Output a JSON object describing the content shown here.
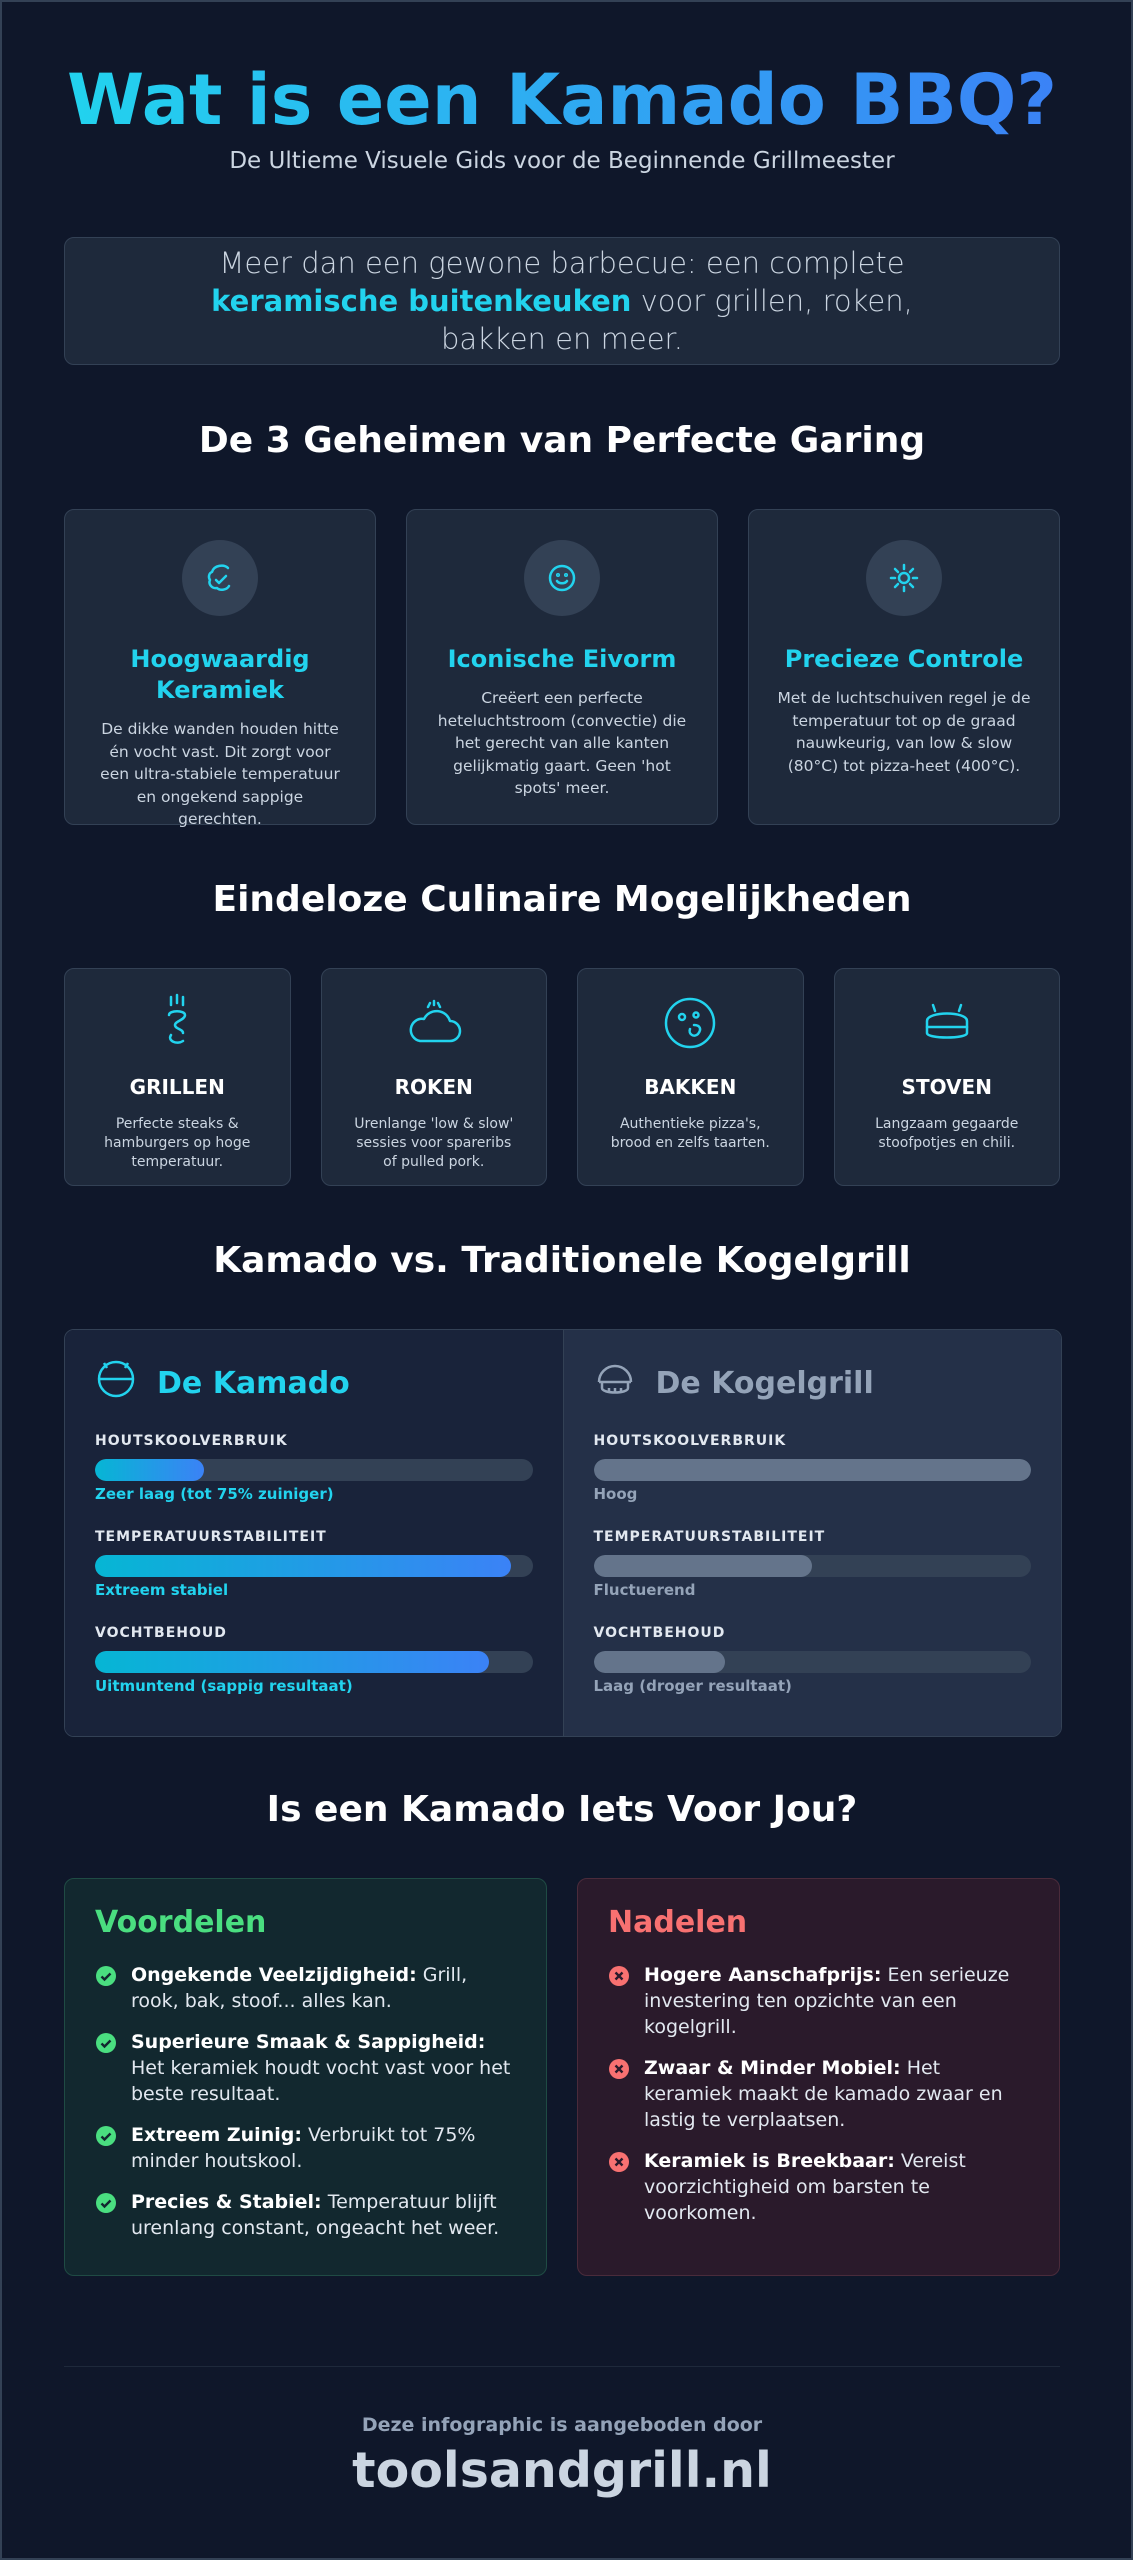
{
  "header": {
    "title": "Wat is een Kamado BBQ?",
    "subtitle": "De Ultieme Visuele Gids voor de Beginnende Grillmeester"
  },
  "intro": {
    "text_before": "Meer dan een gewone barbecue: een complete",
    "highlight": "keramische buitenkeuken",
    "text_after": "voor grillen, roken, bakken en meer."
  },
  "secrets": {
    "heading": "De 3 Geheimen van Perfecte Garing",
    "items": [
      {
        "title": "Hoogwaardig Keramiek",
        "text": "De dikke wanden houden hitte én vocht vast. Dit zorgt voor een ultra-stabiele temperatuur en ongekend sappige gerechten."
      },
      {
        "title": "Iconische Eivorm",
        "text": "Creëert een perfecte heteluchtstroom (convectie) die het gerecht van alle kanten gelijkmatig gaart. Geen 'hot spots' meer."
      },
      {
        "title": "Precieze Controle",
        "text": "Met de luchtschuiven regel je de temperatuur tot op de graad nauwkeurig, van low & slow (80°C) tot pizza-heet (400°C)."
      }
    ]
  },
  "possibilities": {
    "heading": "Eindeloze Culinaire Mogelijkheden",
    "items": [
      {
        "title": "GRILLEN",
        "text": "Perfecte steaks & hamburgers op hoge temperatuur."
      },
      {
        "title": "ROKEN",
        "text": "Urenlange 'low & slow' sessies voor spareribs of pulled pork."
      },
      {
        "title": "BAKKEN",
        "text": "Authentieke pizza's, brood en zelfs taarten."
      },
      {
        "title": "STOVEN",
        "text": "Langzaam gegaarde stoofpotjes en chili."
      }
    ]
  },
  "comparison": {
    "heading": "Kamado vs. Traditionele Kogelgrill",
    "xlim": [
      0,
      100
    ],
    "columns": [
      {
        "name": "De Kamado",
        "metrics": [
          {
            "label": "HOUTSKOOLVERBRUIK",
            "value": 25,
            "note": "Zeer laag (tot 75% zuiniger)"
          },
          {
            "label": "TEMPERATUURSTABILITEIT",
            "value": 95,
            "note": "Extreem stabiel"
          },
          {
            "label": "VOCHTBEHOUD",
            "value": 90,
            "note": "Uitmuntend (sappig resultaat)"
          }
        ]
      },
      {
        "name": "De Kogelgrill",
        "metrics": [
          {
            "label": "HOUTSKOOLVERBRUIK",
            "value": 100,
            "note": "Hoog"
          },
          {
            "label": "TEMPERATUURSTABILITEIT",
            "value": 50,
            "note": "Fluctuerend"
          },
          {
            "label": "VOCHTBEHOUD",
            "value": 30,
            "note": "Laag (droger resultaat)"
          }
        ]
      }
    ]
  },
  "verdict": {
    "heading": "Is een Kamado Iets Voor Jou?",
    "pros": {
      "title": "Voordelen",
      "items": [
        {
          "label": "Ongekende Veelzijdigheid:",
          "text": "Grill, rook, bak, stoof... alles kan."
        },
        {
          "label": "Superieure Smaak & Sappigheid:",
          "text": "Het keramiek houdt vocht vast voor het beste resultaat."
        },
        {
          "label": "Extreem Zuinig:",
          "text": "Verbruikt tot 75% minder houtskool."
        },
        {
          "label": "Precies & Stabiel:",
          "text": "Temperatuur blijft urenlang constant, ongeacht het weer."
        }
      ]
    },
    "cons": {
      "title": "Nadelen",
      "items": [
        {
          "label": "Hogere Aanschafprijs:",
          "text": "Een serieuze investering ten opzichte van een kogelgrill."
        },
        {
          "label": "Zwaar & Minder Mobiel:",
          "text": "Het keramiek maakt de kamado zwaar en lastig te verplaatsen."
        },
        {
          "label": "Keramiek is Breekbaar:",
          "text": "Vereist voorzichtigheid om barsten te voorkomen."
        }
      ]
    }
  },
  "footer": {
    "credit": "Deze infographic is aangeboden door",
    "site": "toolsandgrill.nl"
  }
}
